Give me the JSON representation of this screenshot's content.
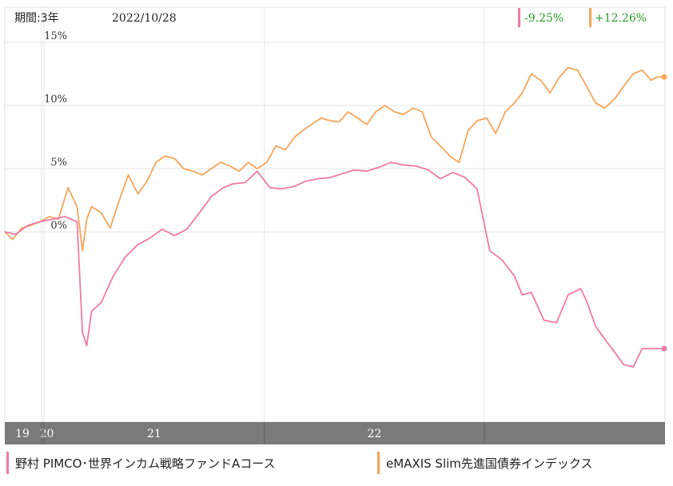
{
  "header": {
    "period_label": "期間:3年",
    "date": "2022/10/28"
  },
  "colors": {
    "pimco": "#f07aa5",
    "emaxis": "#f5a55a",
    "change_text": "#2a9a2a",
    "year_band": "#7a7a7a"
  },
  "chart_data": {
    "type": "line",
    "title": "",
    "y_ticks": [
      "15%",
      "10%",
      "5%",
      "0%"
    ],
    "y_tick_values": [
      15,
      10,
      5,
      0
    ],
    "ylim": [
      -11,
      16
    ],
    "x_year_labels": [
      "19",
      "20",
      "21",
      "22"
    ],
    "x_year_starts": [
      "2020-01-01",
      "2021-01-01",
      "2022-01-01"
    ],
    "xlim": [
      "2019-10-28",
      "2022-10-28"
    ],
    "grid": true,
    "series": [
      {
        "name": "野村 PIMCO･世界インカム戦略ファンドAコース",
        "change_label": "-9.25%",
        "x": [
          "2019-10-28",
          "2019-11-15",
          "2019-12-05",
          "2019-12-25",
          "2020-01-15",
          "2020-02-05",
          "2020-02-25",
          "2020-03-05",
          "2020-03-12",
          "2020-03-20",
          "2020-04-05",
          "2020-04-25",
          "2020-05-15",
          "2020-06-05",
          "2020-06-25",
          "2020-07-15",
          "2020-08-05",
          "2020-08-25",
          "2020-09-15",
          "2020-10-05",
          "2020-10-25",
          "2020-11-10",
          "2020-11-30",
          "2020-12-20",
          "2021-01-10",
          "2021-01-30",
          "2021-02-20",
          "2021-03-10",
          "2021-03-30",
          "2021-04-20",
          "2021-05-10",
          "2021-05-30",
          "2021-06-20",
          "2021-07-10",
          "2021-07-30",
          "2021-08-20",
          "2021-09-10",
          "2021-09-30",
          "2021-10-20",
          "2021-11-10",
          "2021-11-30",
          "2021-12-20",
          "2022-01-10",
          "2022-01-30",
          "2022-02-20",
          "2022-03-05",
          "2022-03-20",
          "2022-04-10",
          "2022-05-01",
          "2022-05-20",
          "2022-06-10",
          "2022-06-20",
          "2022-07-05",
          "2022-07-20",
          "2022-08-05",
          "2022-08-20",
          "2022-09-05",
          "2022-09-20",
          "2022-10-10",
          "2022-10-20",
          "2022-10-28"
        ],
        "values": [
          0.0,
          -0.2,
          0.5,
          0.8,
          1.0,
          1.2,
          0.8,
          -8.0,
          -9.0,
          -6.3,
          -5.6,
          -3.5,
          -2.0,
          -1.0,
          -0.5,
          0.2,
          -0.3,
          0.2,
          1.5,
          2.8,
          3.5,
          3.8,
          3.9,
          4.8,
          3.5,
          3.4,
          3.6,
          4.0,
          4.2,
          4.3,
          4.6,
          4.9,
          4.8,
          5.1,
          5.5,
          5.3,
          5.2,
          4.9,
          4.2,
          4.7,
          4.3,
          3.4,
          -1.5,
          -2.2,
          -3.5,
          -5.0,
          -4.8,
          -7.0,
          -7.2,
          -5.0,
          -4.5,
          -5.5,
          -7.5,
          -8.5,
          -9.5,
          -10.5,
          -10.7,
          -9.25,
          -9.25,
          -9.25,
          -9.25
        ]
      },
      {
        "name": "eMAXIS Slim先進国債券インデックス",
        "change_label": "+12.26%",
        "x": [
          "2019-10-28",
          "2019-11-10",
          "2019-11-25",
          "2019-12-10",
          "2019-12-25",
          "2020-01-10",
          "2020-01-25",
          "2020-02-10",
          "2020-02-25",
          "2020-03-05",
          "2020-03-12",
          "2020-03-20",
          "2020-04-05",
          "2020-04-20",
          "2020-05-05",
          "2020-05-20",
          "2020-06-05",
          "2020-06-20",
          "2020-07-05",
          "2020-07-20",
          "2020-08-05",
          "2020-08-20",
          "2020-09-05",
          "2020-09-20",
          "2020-10-05",
          "2020-10-20",
          "2020-11-05",
          "2020-11-20",
          "2020-12-05",
          "2020-12-20",
          "2021-01-05",
          "2021-01-20",
          "2021-02-05",
          "2021-02-20",
          "2021-03-05",
          "2021-03-20",
          "2021-04-05",
          "2021-04-20",
          "2021-05-05",
          "2021-05-20",
          "2021-06-05",
          "2021-06-20",
          "2021-07-05",
          "2021-07-20",
          "2021-08-05",
          "2021-08-20",
          "2021-09-05",
          "2021-09-20",
          "2021-10-05",
          "2021-10-20",
          "2021-11-05",
          "2021-11-20",
          "2021-12-05",
          "2021-12-20",
          "2022-01-05",
          "2022-01-20",
          "2022-02-05",
          "2022-02-20",
          "2022-03-05",
          "2022-03-20",
          "2022-04-05",
          "2022-04-20",
          "2022-05-05",
          "2022-05-20",
          "2022-06-05",
          "2022-06-20",
          "2022-07-05",
          "2022-07-20",
          "2022-08-05",
          "2022-08-20",
          "2022-09-05",
          "2022-09-20",
          "2022-10-05",
          "2022-10-15",
          "2022-10-28"
        ],
        "values": [
          0.0,
          -0.6,
          0.3,
          0.5,
          0.8,
          1.2,
          1.0,
          3.5,
          2.0,
          -1.5,
          1.0,
          2.0,
          1.5,
          0.3,
          2.5,
          4.5,
          3.0,
          4.0,
          5.5,
          6.0,
          5.8,
          5.0,
          4.8,
          4.5,
          5.0,
          5.5,
          5.2,
          4.8,
          5.5,
          5.0,
          5.5,
          6.8,
          6.5,
          7.5,
          8.0,
          8.5,
          9.0,
          8.8,
          8.7,
          9.5,
          9.0,
          8.5,
          9.5,
          10.0,
          9.5,
          9.3,
          9.8,
          9.5,
          7.5,
          6.8,
          6.0,
          5.5,
          8.0,
          8.8,
          9.0,
          7.8,
          9.5,
          10.2,
          11.0,
          12.5,
          12.0,
          11.0,
          12.2,
          13.0,
          12.8,
          11.5,
          10.2,
          9.8,
          10.5,
          11.5,
          12.5,
          12.8,
          12.0,
          12.26,
          12.26
        ]
      }
    ]
  }
}
